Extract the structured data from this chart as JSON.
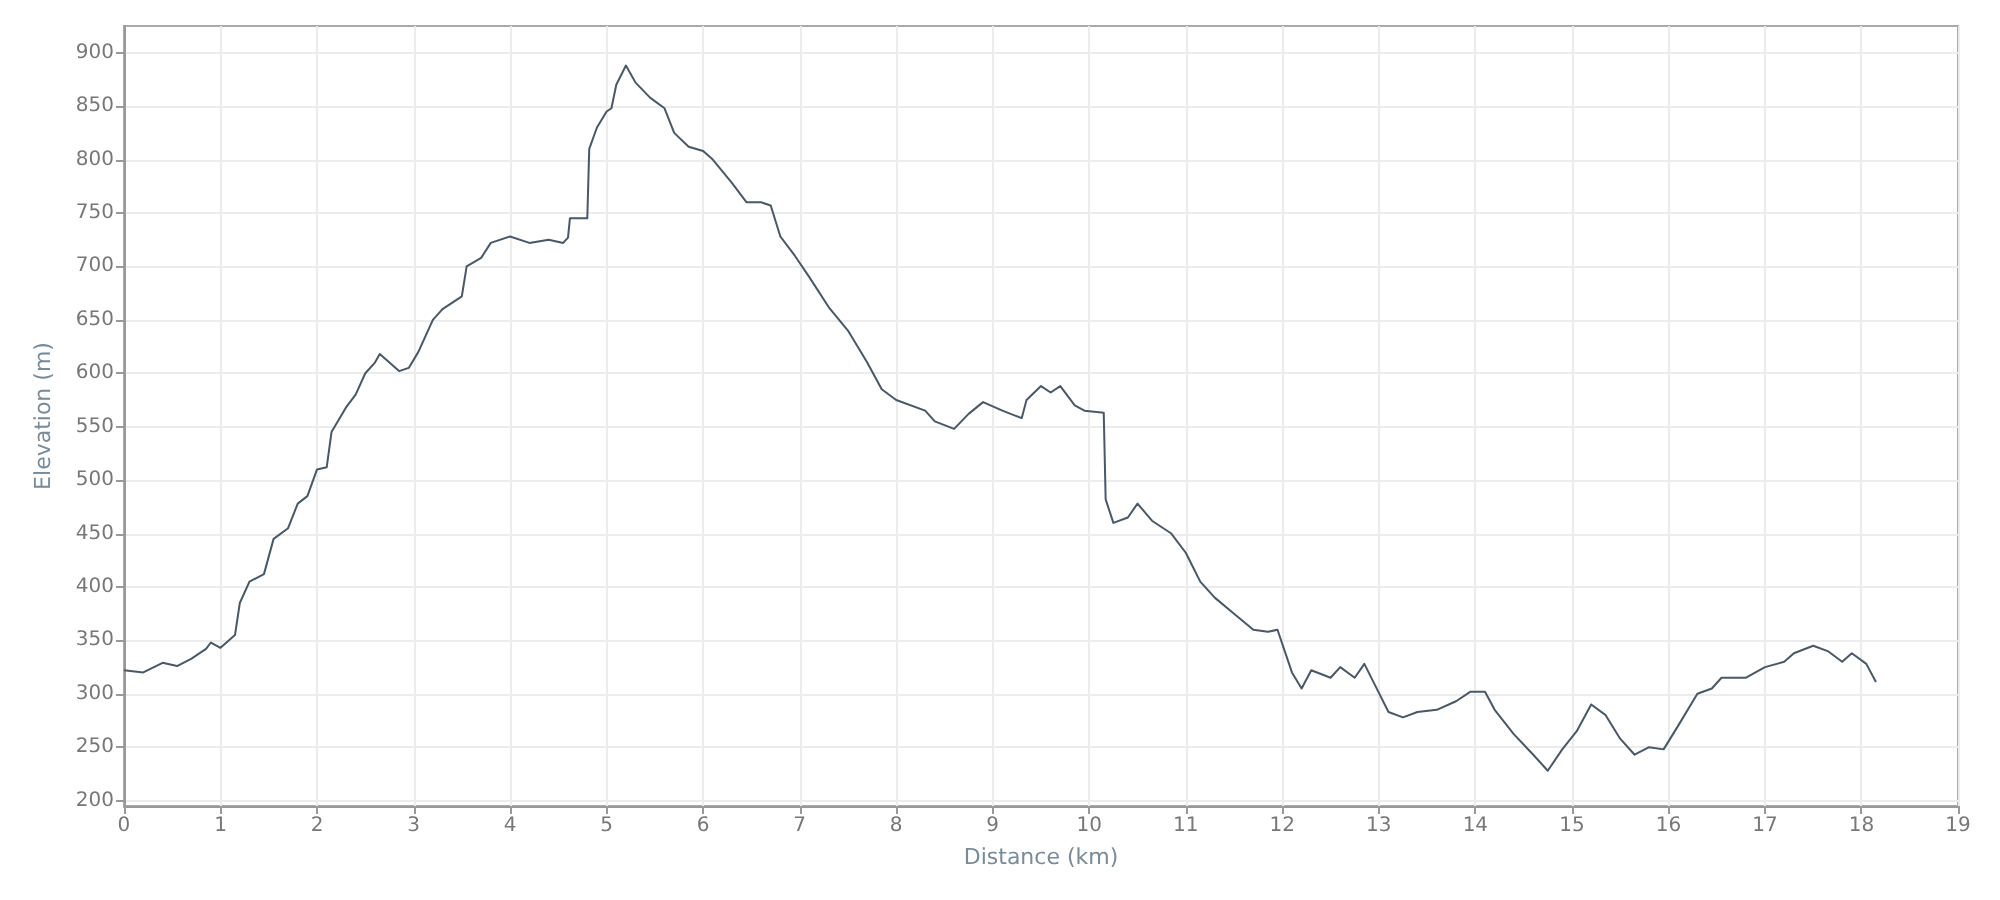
{
  "chart_data": {
    "type": "line",
    "xlabel": "Distance (km)",
    "ylabel": "Elevation (m)",
    "xlim": [
      0,
      19
    ],
    "xticks": [
      0,
      1,
      2,
      3,
      4,
      5,
      6,
      7,
      8,
      9,
      10,
      11,
      12,
      13,
      14,
      15,
      16,
      17,
      18,
      19
    ],
    "ylim": [
      195,
      925
    ],
    "yticks": [
      200,
      250,
      300,
      350,
      400,
      450,
      500,
      550,
      600,
      650,
      700,
      750,
      800,
      850,
      900
    ],
    "grid": true,
    "marker": "none",
    "line_style": "solid",
    "series": [
      {
        "color": "#4a5866",
        "x": [
          0,
          0.2,
          0.4,
          0.55,
          0.7,
          0.85,
          0.9,
          1.0,
          1.15,
          1.2,
          1.3,
          1.45,
          1.55,
          1.7,
          1.8,
          1.9,
          2.0,
          2.1,
          2.15,
          2.3,
          2.4,
          2.5,
          2.6,
          2.65,
          2.75,
          2.85,
          2.95,
          3.05,
          3.2,
          3.3,
          3.5,
          3.55,
          3.7,
          3.8,
          4.0,
          4.2,
          4.4,
          4.55,
          4.6,
          4.62,
          4.8,
          4.82,
          4.9,
          5.0,
          5.05,
          5.1,
          5.2,
          5.3,
          5.45,
          5.6,
          5.7,
          5.85,
          6.0,
          6.1,
          6.3,
          6.45,
          6.6,
          6.7,
          6.8,
          6.95,
          7.1,
          7.3,
          7.5,
          7.7,
          7.85,
          8.0,
          8.3,
          8.4,
          8.6,
          8.75,
          8.9,
          9.1,
          9.3,
          9.35,
          9.5,
          9.6,
          9.7,
          9.85,
          9.95,
          10.15,
          10.17,
          10.25,
          10.4,
          10.5,
          10.65,
          10.85,
          11.0,
          11.15,
          11.3,
          11.5,
          11.7,
          11.85,
          11.95,
          12.1,
          12.2,
          12.3,
          12.5,
          12.6,
          12.75,
          12.85,
          12.95,
          13.1,
          13.25,
          13.4,
          13.6,
          13.8,
          13.95,
          14.1,
          14.2,
          14.4,
          14.6,
          14.75,
          14.9,
          15.05,
          15.2,
          15.35,
          15.5,
          15.65,
          15.8,
          15.95,
          16.1,
          16.3,
          16.45,
          16.55,
          16.8,
          17.0,
          17.2,
          17.3,
          17.5,
          17.65,
          17.8,
          17.9,
          18.05,
          18.15
        ],
        "values": [
          322,
          320,
          329,
          326,
          333,
          342,
          348,
          343,
          355,
          385,
          405,
          412,
          445,
          455,
          478,
          485,
          510,
          512,
          545,
          568,
          580,
          600,
          610,
          618,
          610,
          602,
          605,
          620,
          650,
          660,
          672,
          700,
          708,
          722,
          728,
          722,
          725,
          722,
          727,
          745,
          745,
          810,
          830,
          845,
          848,
          870,
          888,
          872,
          858,
          848,
          825,
          812,
          808,
          800,
          778,
          760,
          760,
          757,
          728,
          710,
          690,
          662,
          640,
          610,
          585,
          575,
          565,
          555,
          548,
          562,
          573,
          565,
          558,
          575,
          588,
          582,
          588,
          570,
          565,
          563,
          482,
          460,
          465,
          478,
          462,
          450,
          432,
          405,
          390,
          375,
          360,
          358,
          360,
          320,
          305,
          322,
          315,
          325,
          315,
          328,
          310,
          283,
          278,
          283,
          285,
          293,
          302,
          302,
          285,
          262,
          243,
          228,
          248,
          265,
          290,
          280,
          258,
          243,
          250,
          248,
          270,
          300,
          305,
          315,
          315,
          325,
          330,
          338,
          345,
          340,
          330,
          338,
          328,
          311
        ]
      }
    ]
  }
}
